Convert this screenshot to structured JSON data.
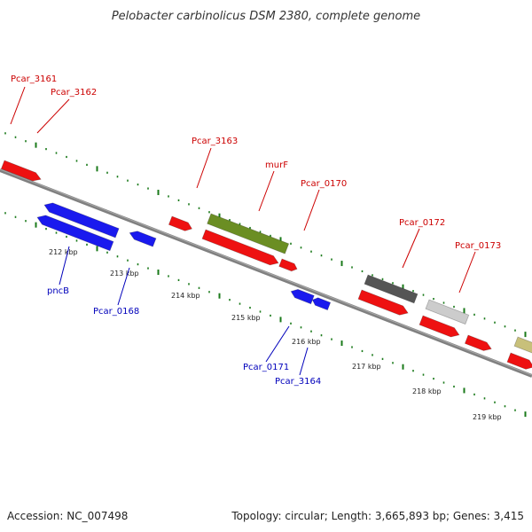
{
  "title": "Pelobacter carbinolicus DSM 2380, complete genome",
  "footer": {
    "accession": "Accession: NC_007498",
    "summary": "Topology: circular; Length: 3,665,893 bp; Genes: 3,415"
  },
  "colors": {
    "forward_label": "#cc0000",
    "reverse_label": "#0000bb",
    "backbone": "#808080",
    "tick_major": "#1a7a1a",
    "tick_minor": "#1a7a1a",
    "red_gene": "#ee1111",
    "blue_gene": "#1a1aee",
    "olive_gene": "#6b8e23",
    "dark_gray_gene": "#555555",
    "light_gray_gene": "#cccccc",
    "khaki_gene": "#c8c07a"
  },
  "kbp_labels": [
    "212 kbp",
    "213 kbp",
    "214 kbp",
    "215 kbp",
    "216 kbp",
    "217 kbp",
    "218 kbp",
    "219 kbp"
  ],
  "forward_genes": [
    {
      "label": "Pcar_3161"
    },
    {
      "label": "Pcar_3162"
    },
    {
      "label": "Pcar_3163"
    },
    {
      "label": "murF"
    },
    {
      "label": "Pcar_0170"
    },
    {
      "label": "Pcar_0172"
    },
    {
      "label": "Pcar_0173"
    }
  ],
  "reverse_genes": [
    {
      "label": "pncB"
    },
    {
      "label": "Pcar_0168"
    },
    {
      "label": "Pcar_0171"
    },
    {
      "label": "Pcar_3164"
    }
  ]
}
